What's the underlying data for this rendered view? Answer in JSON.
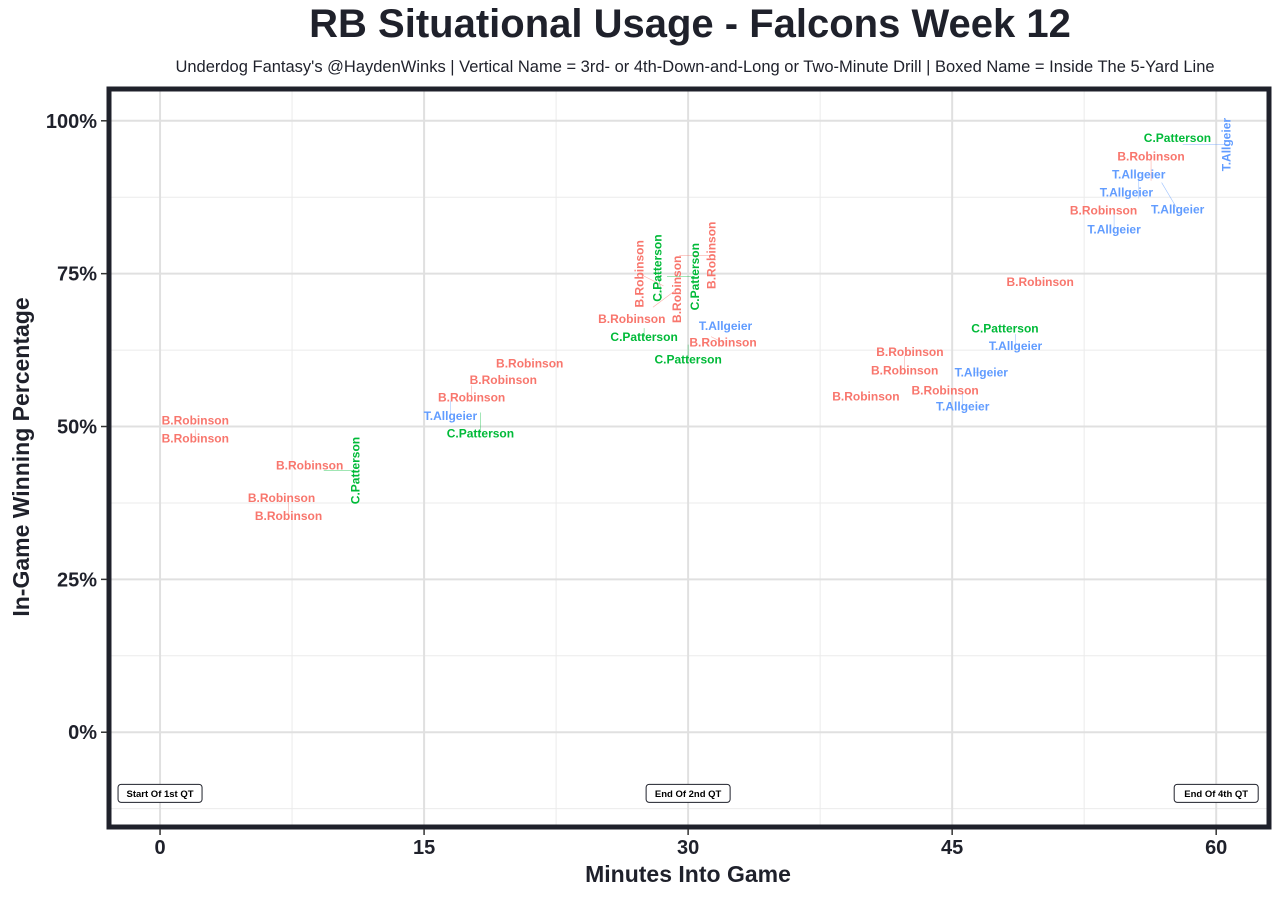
{
  "chart_data": {
    "type": "scatter",
    "title": "RB Situational Usage - Falcons Week 12",
    "subtitle": "Underdog Fantasy's @HaydenWinks | Vertical Name = 3rd- or 4th-Down-and-Long or Two-Minute Drill | Boxed Name = Inside The 5-Yard Line",
    "xlabel": "Minutes Into Game",
    "ylabel": "In-Game Winning Percentage",
    "xlim": [
      -2.9,
      63.0
    ],
    "ylim": [
      -15.5,
      105.2
    ],
    "x_ticks": [
      0,
      15,
      30,
      45,
      60
    ],
    "x_tick_labels": [
      "0",
      "15",
      "30",
      "45",
      "60"
    ],
    "y_ticks": [
      0,
      25,
      50,
      75,
      100
    ],
    "y_tick_labels": [
      "0%",
      "25%",
      "50%",
      "75%",
      "100%"
    ],
    "grid": true,
    "player_colors": {
      "B.Robinson": "#F8766D",
      "C.Patterson": "#00BA38",
      "T.Allgeier": "#619CFF"
    },
    "annotations": [
      {
        "text": "Start Of 1st QT",
        "x": 0,
        "y": -10
      },
      {
        "text": "End Of 2nd QT",
        "x": 30,
        "y": -10
      },
      {
        "text": "End Of 4th QT",
        "x": 60,
        "y": -10
      }
    ],
    "points": [
      {
        "player": "B.Robinson",
        "x": 2.0,
        "y": 51.0,
        "vertical": false
      },
      {
        "player": "B.Robinson",
        "x": 2.0,
        "y": 49.5,
        "vertical": false
      },
      {
        "player": "B.Robinson",
        "x": 8.5,
        "y": 43.6,
        "vertical": false
      },
      {
        "player": "B.Robinson",
        "x": 6.9,
        "y": 38.3,
        "vertical": false
      },
      {
        "player": "B.Robinson",
        "x": 7.3,
        "y": 37.8,
        "vertical": false
      },
      {
        "player": "C.Patterson",
        "x": 9.3,
        "y": 42.8,
        "vertical": true
      },
      {
        "player": "B.Robinson",
        "x": 21.0,
        "y": 60.3,
        "vertical": false
      },
      {
        "player": "B.Robinson",
        "x": 19.5,
        "y": 58.1,
        "vertical": false
      },
      {
        "player": "B.Robinson",
        "x": 17.7,
        "y": 56.7,
        "vertical": false
      },
      {
        "player": "T.Allgeier",
        "x": 16.5,
        "y": 54.2,
        "vertical": false
      },
      {
        "player": "C.Patterson",
        "x": 18.2,
        "y": 52.3,
        "vertical": false
      },
      {
        "player": "B.Robinson",
        "x": 26.8,
        "y": 67.6,
        "vertical": false
      },
      {
        "player": "C.Patterson",
        "x": 27.5,
        "y": 66.1,
        "vertical": false
      },
      {
        "player": "T.Allgeier",
        "x": 31.9,
        "y": 66.4,
        "vertical": false
      },
      {
        "player": "B.Robinson",
        "x": 31.3,
        "y": 64.7,
        "vertical": false
      },
      {
        "player": "C.Patterson",
        "x": 30.0,
        "y": 63.4,
        "vertical": false
      },
      {
        "player": "B.Robinson",
        "x": 28.0,
        "y": 69.5,
        "vertical": true
      },
      {
        "player": "C.Patterson",
        "x": 28.5,
        "y": 71.0,
        "vertical": true
      },
      {
        "player": "B.Robinson",
        "x": 28.6,
        "y": 73.0,
        "vertical": true
      },
      {
        "player": "C.Patterson",
        "x": 28.8,
        "y": 74.5,
        "vertical": true
      },
      {
        "player": "B.Robinson",
        "x": 29.5,
        "y": 78.0,
        "vertical": true
      },
      {
        "player": "B.Robinson",
        "x": 42.6,
        "y": 62.2,
        "vertical": false
      },
      {
        "player": "B.Robinson",
        "x": 42.3,
        "y": 61.6,
        "vertical": false
      },
      {
        "player": "B.Robinson",
        "x": 40.1,
        "y": 54.9,
        "vertical": false
      },
      {
        "player": "B.Robinson",
        "x": 44.6,
        "y": 55.9,
        "vertical": false
      },
      {
        "player": "T.Allgeier",
        "x": 45.6,
        "y": 55.7,
        "vertical": false
      },
      {
        "player": "T.Allgeier",
        "x": 46.2,
        "y": 58.8,
        "vertical": false
      },
      {
        "player": "C.Patterson",
        "x": 48.0,
        "y": 66.0,
        "vertical": false
      },
      {
        "player": "T.Allgeier",
        "x": 48.6,
        "y": 65.1,
        "vertical": false
      },
      {
        "player": "B.Robinson",
        "x": 50.0,
        "y": 73.6,
        "vertical": false
      },
      {
        "player": "B.Robinson",
        "x": 53.6,
        "y": 85.3,
        "vertical": false
      },
      {
        "player": "T.Allgeier",
        "x": 54.2,
        "y": 84.7,
        "vertical": false
      },
      {
        "player": "T.Allgeier",
        "x": 54.9,
        "y": 87.8,
        "vertical": false
      },
      {
        "player": "T.Allgeier",
        "x": 55.6,
        "y": 87.3,
        "vertical": false
      },
      {
        "player": "B.Robinson",
        "x": 56.3,
        "y": 90.2,
        "vertical": false
      },
      {
        "player": "T.Allgeier",
        "x": 56.9,
        "y": 89.9,
        "vertical": false
      },
      {
        "player": "C.Patterson",
        "x": 57.8,
        "y": 96.7,
        "vertical": false
      },
      {
        "player": "T.Allgeier",
        "x": 58.1,
        "y": 96.1,
        "vertical": true
      }
    ]
  }
}
